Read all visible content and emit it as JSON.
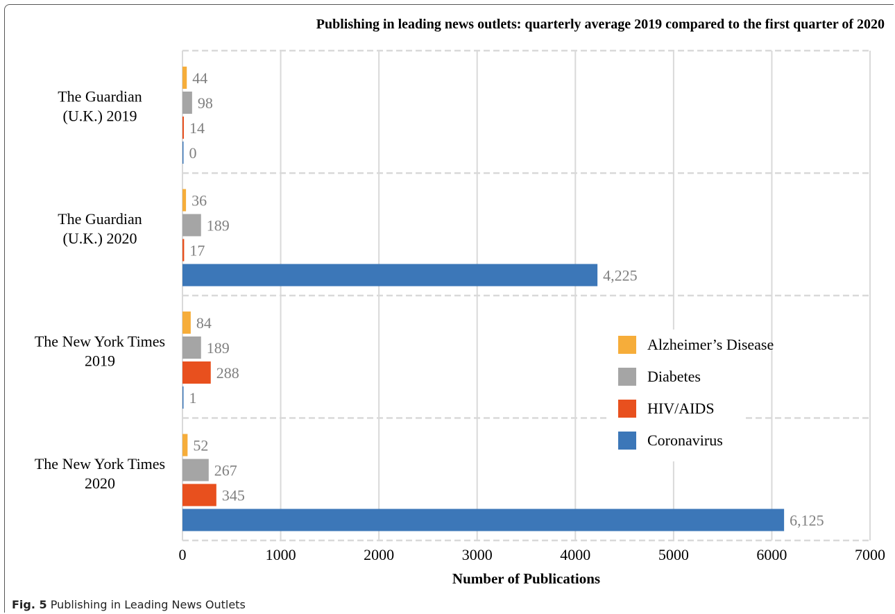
{
  "caption": {
    "label": "Fig. 5",
    "text": "Publishing in Leading News Outlets"
  },
  "colors": {
    "Alzheimer’s Disease": "#f6ad3a",
    "Diabetes": "#a5a5a5",
    "HIV/AIDS": "#e8501e",
    "Coronavirus": "#3c77b8",
    "gridline": "#d9d9d9",
    "value_label": "#7f7f7f"
  },
  "chart_data": {
    "type": "bar",
    "orientation": "horizontal",
    "title": "Publishing in leading news outlets: quarterly average 2019 compared to the first quarter of 2020",
    "xlabel": "Number of Publications",
    "ylabel": "",
    "xlim": [
      0,
      7000
    ],
    "xticks": [
      "0",
      "1000",
      "2000",
      "3000",
      "4000",
      "5000",
      "6000",
      "7000"
    ],
    "grid": "vertical gridlines; dashed separators between groups",
    "legend_position": "right-middle",
    "categories": [
      [
        "The Guardian",
        "(U.K.) 2019"
      ],
      [
        "The Guardian",
        "(U.K.) 2020"
      ],
      [
        "The New York Times",
        "2019"
      ],
      [
        "The New York Times",
        "2020"
      ]
    ],
    "series": [
      {
        "name": "Alzheimer’s Disease",
        "values": [
          44,
          36,
          84,
          52
        ],
        "labels": [
          "44",
          "36",
          "84",
          "52"
        ]
      },
      {
        "name": "Diabetes",
        "values": [
          98,
          189,
          189,
          267
        ],
        "labels": [
          "98",
          "189",
          "189",
          "267"
        ]
      },
      {
        "name": "HIV/AIDS",
        "values": [
          14,
          17,
          288,
          345
        ],
        "labels": [
          "14",
          "17",
          "288",
          "345"
        ]
      },
      {
        "name": "Coronavirus",
        "values": [
          0,
          4225,
          1,
          6125
        ],
        "labels": [
          "0",
          "4,225",
          "1",
          "6,125"
        ]
      }
    ]
  }
}
